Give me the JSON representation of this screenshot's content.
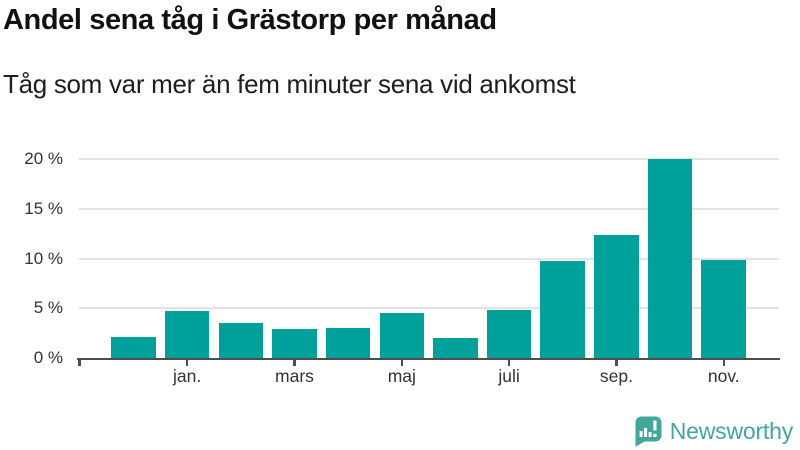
{
  "header": {
    "title": "Andel sena tåg i Grästorp per månad",
    "subtitle": "Tåg som var mer än fem minuter sena vid ankomst"
  },
  "chart_data": {
    "type": "bar",
    "title": "Andel sena tåg i Grästorp per månad",
    "subtitle": "Tåg som var mer än fem minuter sena vid ankomst",
    "unit": "%",
    "values": [
      2.1,
      4.7,
      3.5,
      2.9,
      3.0,
      4.5,
      2.0,
      4.8,
      9.7,
      12.4,
      20.0,
      9.8
    ],
    "x_tick_labels": [
      "jan.",
      "mars",
      "maj",
      "juli",
      "sep.",
      "nov."
    ],
    "x_tick_bar_indices": [
      1,
      3,
      5,
      7,
      9,
      11
    ],
    "y_ticks": [
      0,
      5,
      10,
      15,
      20
    ],
    "y_tick_labels": [
      "0 %",
      "5 %",
      "10 %",
      "15 %",
      "20 %"
    ],
    "ylim": [
      0,
      21
    ],
    "grid": true,
    "legend": "none",
    "bar_color": "#00a19a",
    "axis_color": "#4d4d4d",
    "gridline_color": "#e3e3e3",
    "tick_label_color": "#333333"
  },
  "footer": {
    "brand": "Newsworthy",
    "brand_color": "#41a79d",
    "logo_icon": "newsworthy-speech-bubble-barchart-icon"
  }
}
